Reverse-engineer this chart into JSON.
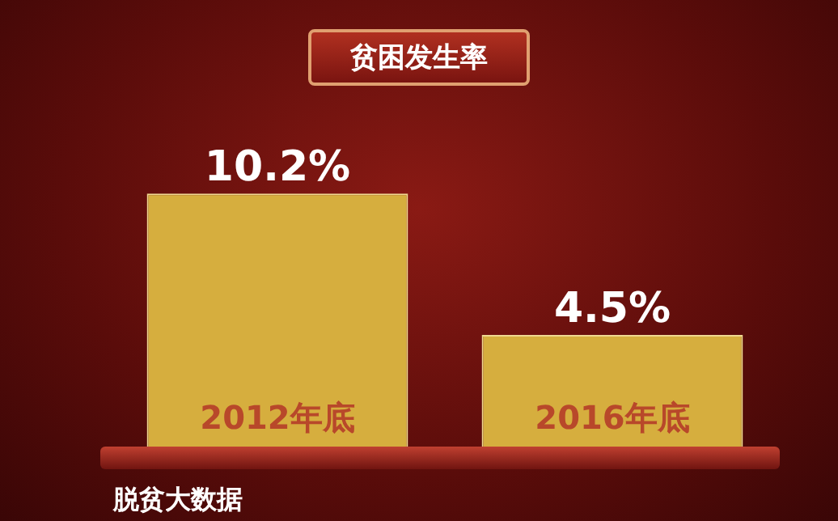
{
  "chart_data": {
    "type": "bar",
    "title": "贫困发生率",
    "categories": [
      "2012年底",
      "2016年底"
    ],
    "values": [
      10.2,
      4.5
    ],
    "value_labels": [
      "10.2%",
      "4.5%"
    ],
    "color": "#d6ae3e",
    "legend": false,
    "annotations": [
      "脱贫大数据"
    ]
  }
}
